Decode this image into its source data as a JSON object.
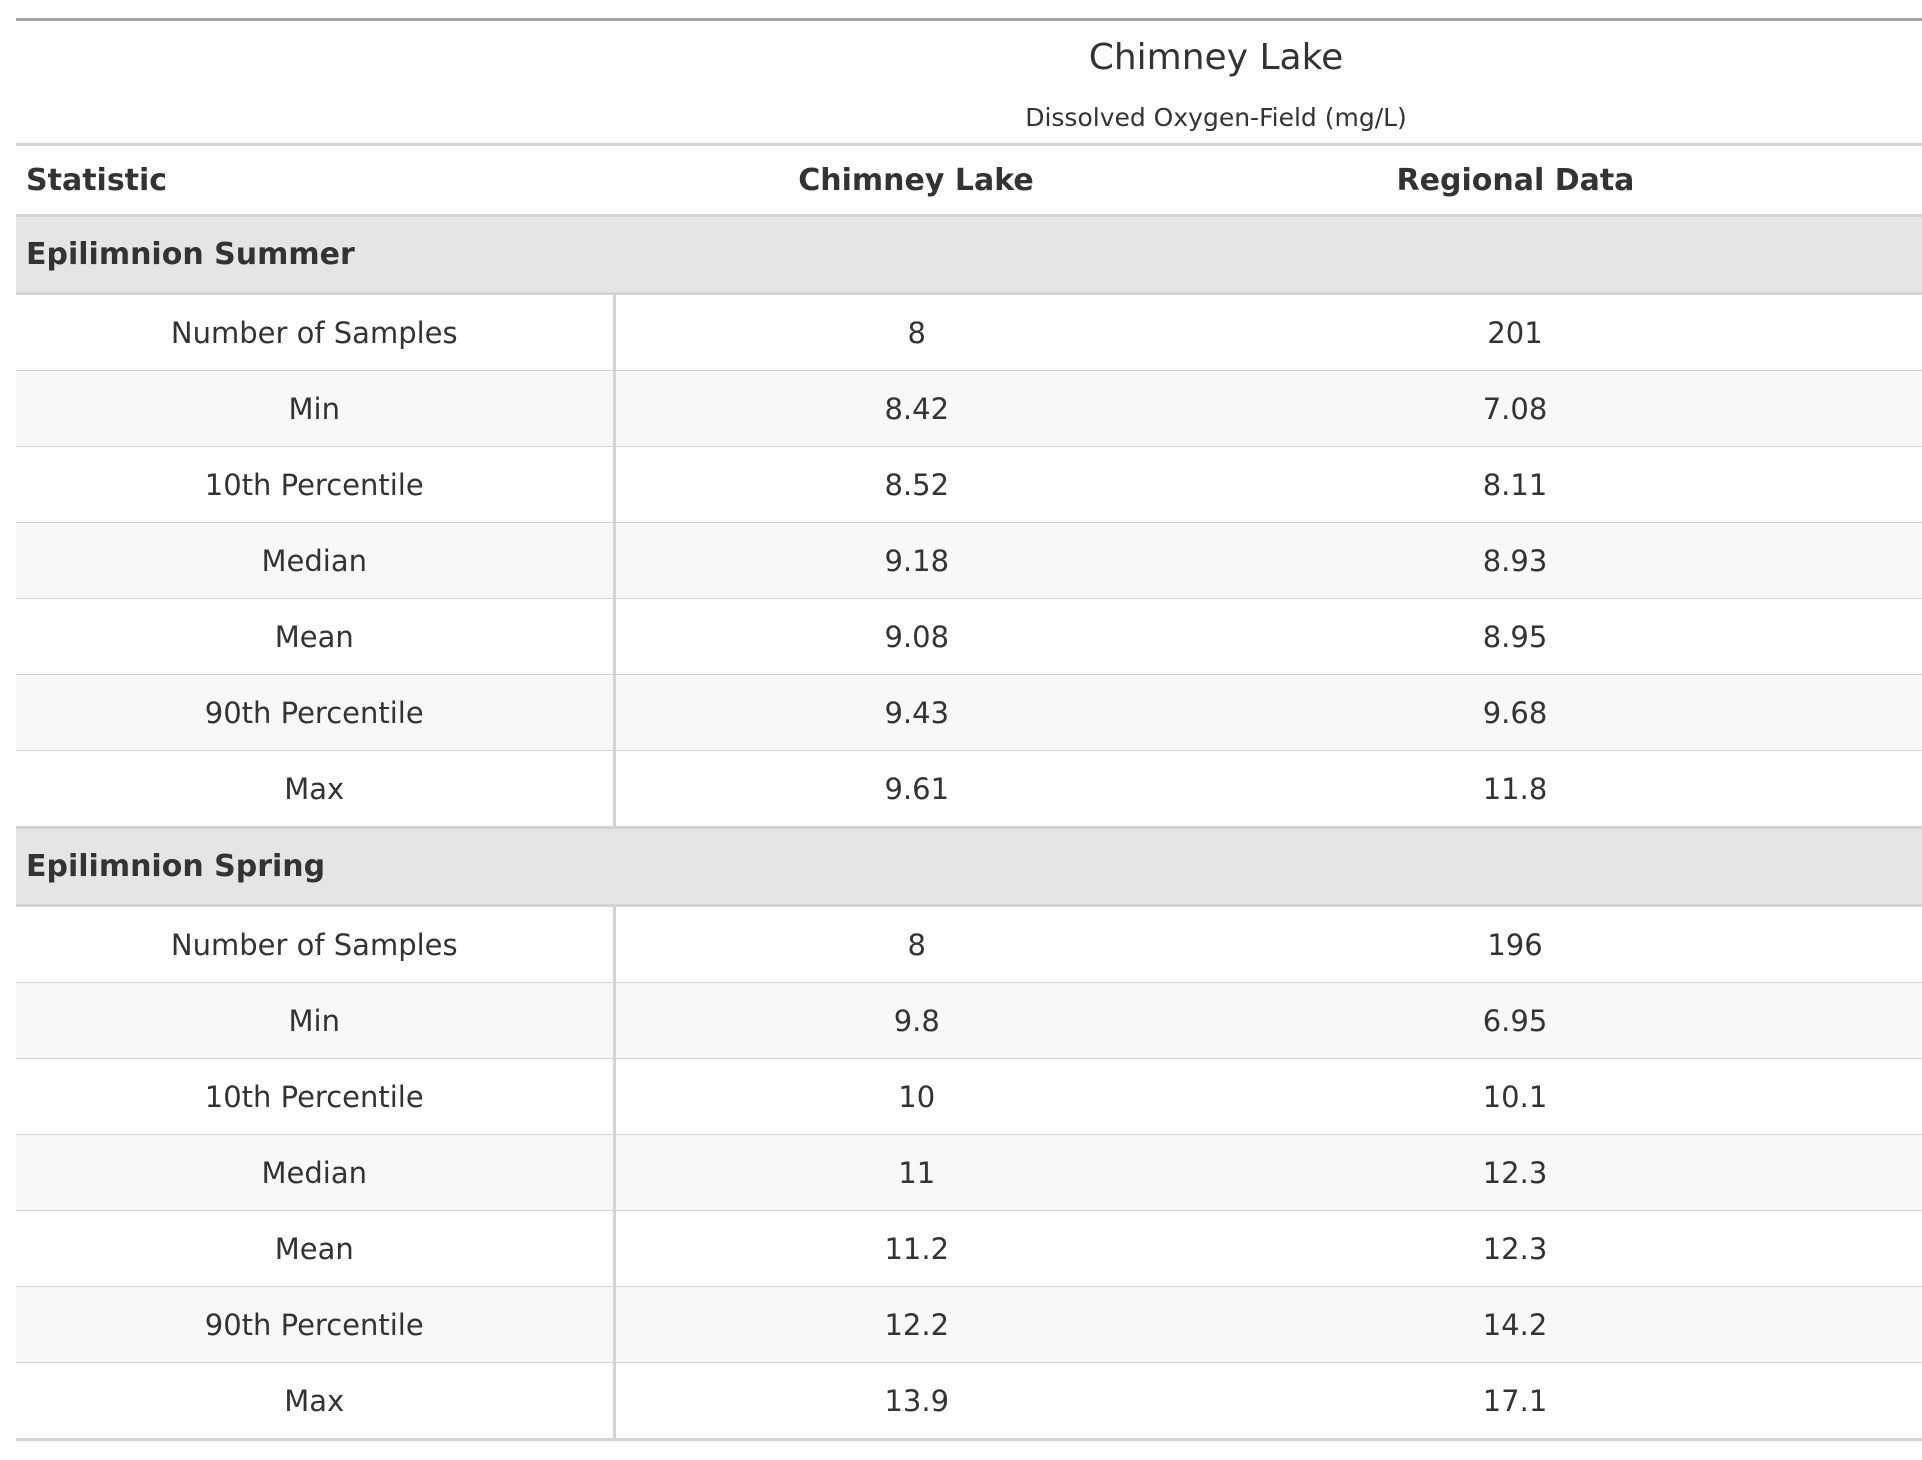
{
  "header": {
    "title": "Chimney Lake",
    "subtitle": "Dissolved Oxygen-Field (mg/L)"
  },
  "columns": [
    "Statistic",
    "Chimney Lake",
    "Regional Data"
  ],
  "groups": [
    {
      "label": "Epilimnion Summer",
      "rows": [
        [
          "Number of Samples",
          "8",
          "201"
        ],
        [
          "Min",
          "8.42",
          "7.08"
        ],
        [
          "10th Percentile",
          "8.52",
          "8.11"
        ],
        [
          "Median",
          "9.18",
          "8.93"
        ],
        [
          "Mean",
          "9.08",
          "8.95"
        ],
        [
          "90th Percentile",
          "9.43",
          "9.68"
        ],
        [
          "Max",
          "9.61",
          "11.8"
        ]
      ]
    },
    {
      "label": "Epilimnion Spring",
      "rows": [
        [
          "Number of Samples",
          "8",
          "196"
        ],
        [
          "Min",
          "9.8",
          "6.95"
        ],
        [
          "10th Percentile",
          "10",
          "10.1"
        ],
        [
          "Median",
          "11",
          "12.3"
        ],
        [
          "Mean",
          "11.2",
          "12.3"
        ],
        [
          "90th Percentile",
          "12.2",
          "14.2"
        ],
        [
          "Max",
          "13.9",
          "17.1"
        ]
      ]
    }
  ]
}
